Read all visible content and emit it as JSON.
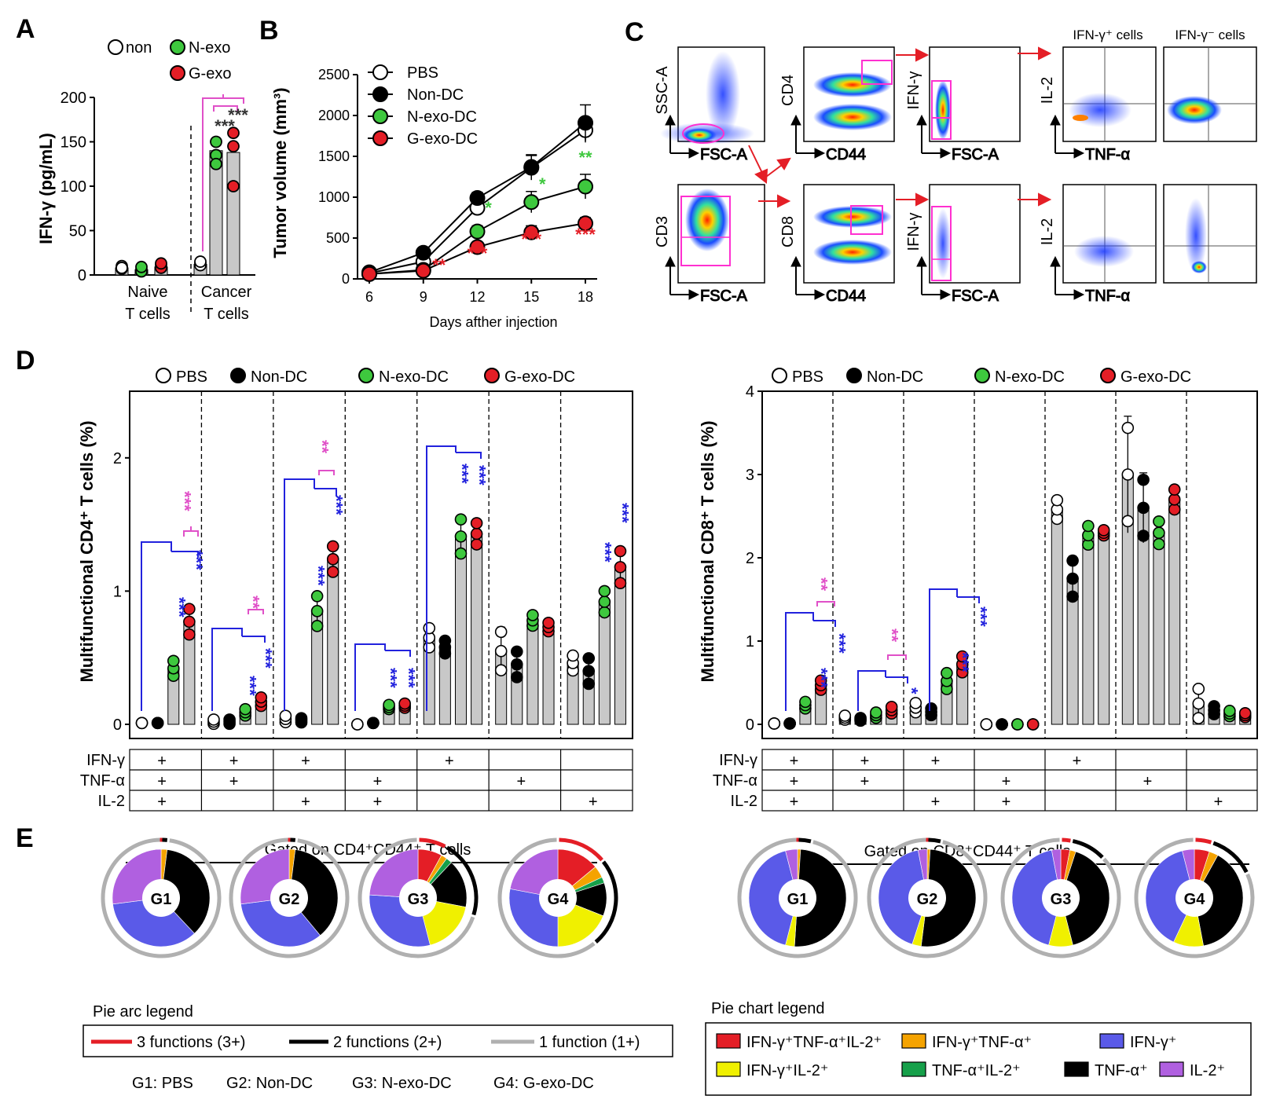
{
  "panels": {
    "A": "A",
    "B": "B",
    "C": "C",
    "D": "D",
    "E": "E"
  },
  "colors": {
    "non": "#ffffff",
    "nexo": "#3ec83e",
    "gexo": "#e41e26",
    "nondc": "#000000",
    "bar": "#c8c8c8",
    "blue_sig": "#2222dd",
    "pink_sig": "#e050c8",
    "black_sig": "#333333",
    "tri": "#e41e26",
    "dbl": "#f5a300",
    "ifng": "#5a5ae8",
    "ifng_il2": "#f0f000",
    "tnf_il2": "#16a04a",
    "tnf": "#000000",
    "il2": "#b060e0",
    "arc1": "#b0b0b0"
  },
  "chart_data": [
    {
      "id": "A",
      "type": "bar",
      "title": "",
      "ylabel": "IFN-γ (pg/mL)",
      "ylim": [
        0,
        200
      ],
      "yticks": [
        "0",
        "50",
        "100",
        "150",
        "200"
      ],
      "legend": [
        "non",
        "N-exo",
        "G-exo"
      ],
      "groups": [
        {
          "line1": "Naive",
          "line2": "T cells"
        },
        {
          "line1": "Cancer",
          "line2": "T cells"
        }
      ],
      "series": [
        {
          "name": "non",
          "values": [
            8,
            12
          ]
        },
        {
          "name": "N-exo",
          "values": [
            6,
            140
          ]
        },
        {
          "name": "G-exo",
          "values": [
            9,
            138
          ]
        }
      ],
      "points": [
        [
          [
            7,
            10,
            8
          ],
          [
            6,
            4,
            9
          ],
          [
            11,
            8,
            13
          ]
        ],
        [
          [
            13,
            11,
            15
          ],
          [
            150,
            135,
            125
          ],
          [
            160,
            145,
            100
          ]
        ]
      ],
      "sig": [
        "***",
        "***"
      ]
    },
    {
      "id": "B",
      "type": "line",
      "xlabel": "Days afther injection",
      "ylabel": "Tumor volume (mm³)",
      "x": [
        6,
        9,
        12,
        15,
        18
      ],
      "ylim": [
        0,
        2500
      ],
      "yticks": [
        "0",
        "500",
        "1000",
        "1500",
        "2000",
        "2500"
      ],
      "series": [
        {
          "name": "PBS",
          "values": [
            70,
            210,
            870,
            1360,
            1820
          ],
          "err": [
            20,
            30,
            60,
            150,
            150
          ]
        },
        {
          "name": "Non-DC",
          "values": [
            80,
            320,
            990,
            1370,
            1910
          ],
          "err": [
            20,
            40,
            70,
            150,
            220
          ]
        },
        {
          "name": "N-exo-DC",
          "values": [
            60,
            110,
            580,
            940,
            1130
          ],
          "err": [
            15,
            20,
            70,
            130,
            150
          ]
        },
        {
          "name": "G-exo-DC",
          "values": [
            60,
            100,
            390,
            570,
            680
          ],
          "err": [
            15,
            20,
            50,
            80,
            70
          ]
        }
      ],
      "green_sig": [
        [
          "12",
          "*"
        ],
        [
          "15",
          "*"
        ],
        [
          "18",
          "**"
        ]
      ],
      "red_sig": [
        [
          "9",
          "**"
        ],
        [
          "12",
          "***"
        ],
        [
          "15",
          "***"
        ],
        [
          "18",
          "***"
        ]
      ]
    },
    {
      "id": "D-CD4",
      "type": "bar",
      "ylabel": "Multifunctional CD4⁺ T cells (%)",
      "ylim": [
        0,
        2.5
      ],
      "yticks": [
        "0",
        "1",
        "2"
      ],
      "legend": [
        "PBS",
        "Non-DC",
        "N-exo-DC",
        "G-exo-DC"
      ],
      "groups": 7,
      "values": [
        [
          0.01,
          0.01,
          0.42,
          0.77
        ],
        [
          0.02,
          0.02,
          0.09,
          0.17
        ],
        [
          0.04,
          0.03,
          0.85,
          1.24
        ],
        [
          0.0,
          0.01,
          0.13,
          0.14
        ],
        [
          0.65,
          0.58,
          1.41,
          1.43
        ],
        [
          0.55,
          0.45,
          0.78,
          0.73
        ],
        [
          0.46,
          0.4,
          0.92,
          1.18
        ]
      ],
      "err": [
        [
          0.0,
          0.0,
          0.07,
          0.12
        ],
        [
          0.02,
          0.02,
          0.03,
          0.04
        ],
        [
          0.03,
          0.02,
          0.14,
          0.12
        ],
        [
          0.0,
          0.0,
          0.02,
          0.02
        ],
        [
          0.09,
          0.06,
          0.16,
          0.1
        ],
        [
          0.18,
          0.12,
          0.05,
          0.04
        ],
        [
          0.07,
          0.12,
          0.1,
          0.15
        ]
      ],
      "table_rows": [
        "IFN-γ",
        "TNF-α",
        "IL-2"
      ],
      "table": [
        [
          "+",
          "+",
          "+"
        ],
        [
          "+",
          "+",
          ""
        ],
        [
          "+",
          "",
          "+"
        ],
        [
          "",
          "+",
          "+"
        ],
        [
          "+",
          "",
          ""
        ],
        [
          "",
          "+",
          ""
        ],
        [
          "",
          "",
          "+"
        ]
      ]
    },
    {
      "id": "D-CD8",
      "type": "bar",
      "ylabel": "Multifunctional CD8⁺ T cells (%)",
      "ylim": [
        0,
        4
      ],
      "yticks": [
        "0",
        "1",
        "2",
        "3",
        "4"
      ],
      "legend": [
        "PBS",
        "Non-DC",
        "N-exo-DC",
        "G-exo-DC"
      ],
      "groups": 7,
      "values": [
        [
          0.01,
          0.01,
          0.23,
          0.47
        ],
        [
          0.08,
          0.06,
          0.11,
          0.17
        ],
        [
          0.2,
          0.15,
          0.52,
          0.72
        ],
        [
          0.0,
          0.0,
          0.0,
          0.0
        ],
        [
          2.58,
          1.75,
          2.27,
          2.3
        ],
        [
          3.0,
          2.6,
          2.3,
          2.7
        ],
        [
          0.25,
          0.17,
          0.13,
          0.11
        ]
      ],
      "err": [
        [
          0.0,
          0.0,
          0.05,
          0.07
        ],
        [
          0.03,
          0.02,
          0.04,
          0.05
        ],
        [
          0.07,
          0.05,
          0.12,
          0.12
        ],
        [
          0.0,
          0.0,
          0.0,
          0.0
        ],
        [
          0.14,
          0.27,
          0.14,
          0.04
        ],
        [
          0.7,
          0.42,
          0.17,
          0.15
        ],
        [
          0.22,
          0.06,
          0.04,
          0.03
        ]
      ],
      "table_rows": [
        "IFN-γ",
        "TNF-α",
        "IL-2"
      ],
      "table": [
        [
          "+",
          "+",
          "+"
        ],
        [
          "+",
          "+",
          ""
        ],
        [
          "+",
          "",
          "+"
        ],
        [
          "",
          "+",
          "+"
        ],
        [
          "+",
          "",
          ""
        ],
        [
          "",
          "+",
          ""
        ],
        [
          "",
          "",
          "+"
        ]
      ]
    },
    {
      "id": "E-CD4",
      "type": "pie",
      "title": "Gated on CD4⁺CD44⁺ T cells",
      "pies": [
        {
          "label": "G1",
          "slices": [
            0,
            0.02,
            0,
            0,
            0.36,
            0.35,
            0.27
          ]
        },
        {
          "label": "G2",
          "slices": [
            0,
            0.02,
            0,
            0,
            0.37,
            0.34,
            0.27
          ]
        },
        {
          "label": "G3",
          "slices": [
            0.08,
            0.02,
            0.18,
            0.02,
            0.16,
            0.3,
            0.24
          ]
        },
        {
          "label": "G4",
          "slices": [
            0.14,
            0.04,
            0.19,
            0.02,
            0.11,
            0.28,
            0.22
          ]
        }
      ]
    },
    {
      "id": "E-CD8",
      "type": "pie",
      "title": "Gated on CD8⁺CD44⁺ T cells",
      "pies": [
        {
          "label": "G1",
          "slices": [
            0,
            0.01,
            0.03,
            0,
            0.5,
            0.42,
            0.04
          ]
        },
        {
          "label": "G2",
          "slices": [
            0,
            0.01,
            0.03,
            0,
            0.51,
            0.42,
            0.03
          ]
        },
        {
          "label": "G3",
          "slices": [
            0.03,
            0.02,
            0.08,
            0,
            0.41,
            0.43,
            0.03
          ]
        },
        {
          "label": "G4",
          "slices": [
            0.05,
            0.03,
            0.1,
            0,
            0.39,
            0.39,
            0.04
          ]
        }
      ]
    }
  ],
  "panelC": {
    "axes": {
      "ssc": "SSC-A",
      "fsc": "FSC-A",
      "cd4": "CD4",
      "cd44": "CD44",
      "ifng": "IFN-γ",
      "il2": "IL-2",
      "tnf": "TNF-α",
      "cd3": "CD3",
      "cd8": "CD8"
    },
    "headers": [
      "IFN-γ⁺ cells",
      "IFN-γ⁻ cells"
    ]
  },
  "panelE": {
    "arc_legend_title": "Pie arc legend",
    "arc_legend": [
      "3 functions (3+)",
      "2 functions (2+)",
      "1 function (1+)"
    ],
    "groups_key": [
      "G1: PBS",
      "G2: Non-DC",
      "G3: N-exo-DC",
      "G4: G-exo-DC"
    ],
    "pie_legend_title": "Pie chart legend",
    "pie_legend": [
      "IFN-γ⁺TNF-α⁺IL-2⁺",
      "IFN-γ⁺TNF-α⁺",
      "IFN-γ⁺",
      "IFN-γ⁺IL-2⁺",
      "TNF-α⁺IL-2⁺",
      "TNF-α⁺",
      "IL-2⁺"
    ]
  }
}
